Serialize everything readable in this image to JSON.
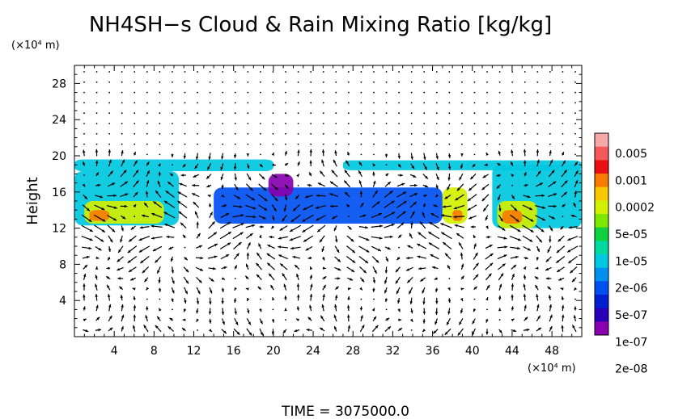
{
  "chart_data": {
    "type": "heatmap",
    "title": "NH4SH−s Cloud & Rain Mixing Ratio [kg/kg]",
    "ylabel": "Height",
    "y_unit_label": "(×10⁴ m)",
    "x_unit_label": "(×10⁴ m)",
    "footer": "TIME  =  3075000.0",
    "xlim": [
      0,
      51
    ],
    "ylim": [
      0,
      30
    ],
    "x_ticks": [
      4,
      8,
      12,
      16,
      20,
      24,
      28,
      32,
      36,
      40,
      44,
      48
    ],
    "y_ticks": [
      4,
      8,
      12,
      16,
      20,
      24,
      28
    ],
    "x_tick_labels": [
      "4",
      "8",
      "12",
      "16",
      "20",
      "24",
      "28",
      "32",
      "36",
      "40",
      "44",
      "48"
    ],
    "y_tick_labels": [
      "4",
      "8",
      "12",
      "16",
      "20",
      "24",
      "28"
    ],
    "colorbar": {
      "labels": [
        "0.005",
        "0.001",
        "0.0002",
        "5e-05",
        "1e-05",
        "2e-06",
        "5e-07",
        "1e-07",
        "2e-08"
      ],
      "colors": [
        "#f7a8a8",
        "#f45a5a",
        "#e81010",
        "#f87c00",
        "#f8c800",
        "#d2f000",
        "#7ce800",
        "#10d040",
        "#00d8a0",
        "#00c8e0",
        "#0090f0",
        "#0050f0",
        "#0020d0",
        "#2800b8",
        "#8800b0"
      ]
    },
    "cloud_regions": [
      {
        "x": [
          0,
          20
        ],
        "y": [
          18.3,
          19.6
        ],
        "level": "1e-05"
      },
      {
        "x": [
          27,
          51
        ],
        "y": [
          18.4,
          19.5
        ],
        "level": "1e-05"
      },
      {
        "x": [
          0,
          10.5
        ],
        "y": [
          12.3,
          18.3
        ],
        "level": "1e-05"
      },
      {
        "x": [
          1,
          9
        ],
        "y": [
          12.5,
          15
        ],
        "level": "0.0002"
      },
      {
        "x": [
          1.5,
          3.5
        ],
        "y": [
          12.8,
          14
        ],
        "level": "0.001"
      },
      {
        "x": [
          14,
          37
        ],
        "y": [
          12.5,
          16.5
        ],
        "level": "2e-06"
      },
      {
        "x": [
          19.5,
          22
        ],
        "y": [
          15.5,
          18
        ],
        "level": "2e-08"
      },
      {
        "x": [
          37,
          39.5
        ],
        "y": [
          12.5,
          16.5
        ],
        "level": "0.0002"
      },
      {
        "x": [
          38,
          39
        ],
        "y": [
          12.8,
          14
        ],
        "level": "0.001"
      },
      {
        "x": [
          42,
          51
        ],
        "y": [
          12,
          19
        ],
        "level": "1e-05"
      },
      {
        "x": [
          42.5,
          46.5
        ],
        "y": [
          12,
          15
        ],
        "level": "0.0002"
      },
      {
        "x": [
          43,
          45
        ],
        "y": [
          12.5,
          14
        ],
        "level": "0.001"
      }
    ]
  }
}
